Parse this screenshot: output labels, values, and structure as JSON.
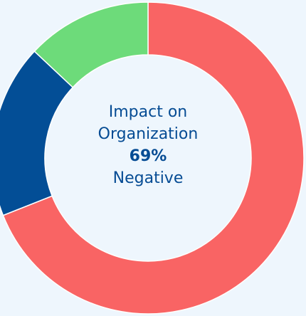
{
  "chart_data": {
    "type": "donut",
    "title": "Impact on Organization",
    "categories": [
      "Negative",
      null,
      null
    ],
    "values": [
      69,
      18,
      13
    ],
    "value_labels": [
      "69%",
      null,
      null
    ],
    "colors": [
      "#f96464",
      "#034e96",
      "#6ddb7a"
    ]
  }
}
